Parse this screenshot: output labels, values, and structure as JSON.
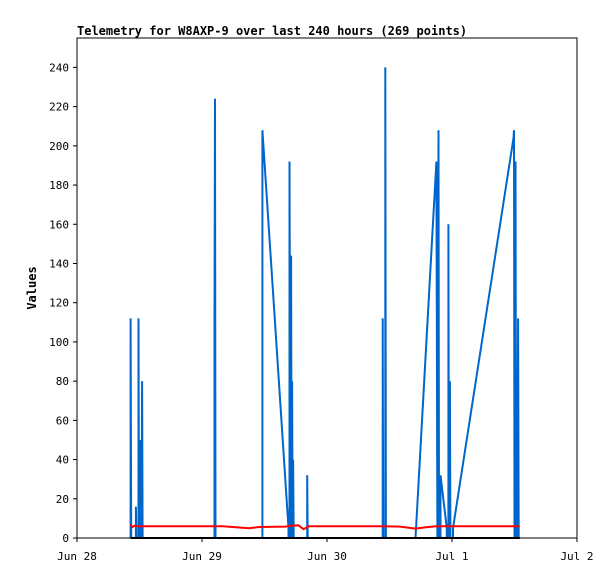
{
  "chart_data": {
    "type": "line",
    "title": "Telemetry for W8AXP-9 over last 240 hours (269 points)",
    "xlabel": "",
    "ylabel": "Values",
    "x_unit": "hours since Jun 28 00:00",
    "xlim": [
      0,
      96
    ],
    "ylim": [
      0,
      255
    ],
    "x_ticks": [
      {
        "value": 0,
        "label": "Jun 28"
      },
      {
        "value": 24,
        "label": "Jun 29"
      },
      {
        "value": 48,
        "label": "Jun 30"
      },
      {
        "value": 72,
        "label": "Jul 1"
      },
      {
        "value": 96,
        "label": "Jul 2"
      }
    ],
    "y_ticks": [
      0,
      20,
      40,
      60,
      80,
      100,
      120,
      140,
      160,
      180,
      200,
      220,
      240
    ],
    "grid": false,
    "series": [
      {
        "color": "#0066cc",
        "points": [
          [
            10.3,
            0
          ],
          [
            10.3,
            112
          ],
          [
            10.4,
            0
          ],
          [
            11.3,
            0
          ],
          [
            11.3,
            16
          ],
          [
            11.4,
            0
          ],
          [
            11.8,
            0
          ],
          [
            11.8,
            112
          ],
          [
            11.9,
            0
          ],
          [
            12.1,
            0
          ],
          [
            12.2,
            50
          ],
          [
            12.3,
            0
          ],
          [
            12.4,
            0
          ],
          [
            12.5,
            80
          ],
          [
            12.6,
            0
          ],
          [
            26.4,
            0
          ],
          [
            26.4,
            112
          ],
          [
            26.5,
            224
          ],
          [
            26.6,
            0
          ],
          [
            35.6,
            0
          ],
          [
            35.6,
            208
          ],
          [
            40.6,
            5
          ],
          [
            40.6,
            0
          ],
          [
            40.8,
            0
          ],
          [
            40.8,
            192
          ],
          [
            41.0,
            0
          ],
          [
            41.1,
            0
          ],
          [
            41.1,
            144
          ],
          [
            41.2,
            0
          ],
          [
            41.3,
            0
          ],
          [
            41.3,
            80
          ],
          [
            41.4,
            0
          ],
          [
            41.5,
            0
          ],
          [
            41.5,
            40
          ],
          [
            41.6,
            0
          ],
          [
            44.2,
            0
          ],
          [
            44.2,
            32
          ],
          [
            44.3,
            0
          ],
          [
            58.7,
            0
          ],
          [
            58.7,
            112
          ],
          [
            58.8,
            0
          ],
          [
            59.2,
            0
          ],
          [
            59.2,
            240
          ],
          [
            59.3,
            0
          ],
          [
            65.0,
            0
          ],
          [
            69.0,
            192
          ],
          [
            69.2,
            0
          ],
          [
            69.3,
            0
          ],
          [
            69.4,
            208
          ],
          [
            69.5,
            0
          ],
          [
            69.8,
            0
          ],
          [
            69.8,
            32
          ],
          [
            71.0,
            5
          ],
          [
            71.0,
            0
          ],
          [
            71.3,
            0
          ],
          [
            71.3,
            160
          ],
          [
            71.4,
            0
          ],
          [
            71.6,
            0
          ],
          [
            71.6,
            80
          ],
          [
            71.7,
            0
          ],
          [
            72.2,
            0
          ],
          [
            72.2,
            5
          ],
          [
            83.8,
            204
          ],
          [
            83.9,
            208
          ],
          [
            84.0,
            0
          ],
          [
            84.2,
            0
          ],
          [
            84.2,
            192
          ],
          [
            84.3,
            0
          ],
          [
            84.6,
            0
          ],
          [
            84.6,
            56
          ],
          [
            84.7,
            112
          ],
          [
            84.8,
            0
          ]
        ]
      },
      {
        "color": "#ff0000",
        "points": [
          [
            10.3,
            7
          ],
          [
            10.6,
            5.5
          ],
          [
            11.0,
            6.2
          ],
          [
            12.0,
            5.9
          ],
          [
            13.0,
            6.0
          ],
          [
            20.0,
            6.0
          ],
          [
            28.0,
            6.0
          ],
          [
            33.0,
            5.0
          ],
          [
            35.0,
            5.6
          ],
          [
            40.0,
            5.8
          ],
          [
            41.0,
            6.2
          ],
          [
            42.5,
            6.5
          ],
          [
            43.5,
            4.5
          ],
          [
            44.5,
            6.0
          ],
          [
            48.0,
            6.0
          ],
          [
            58.0,
            6.0
          ],
          [
            62.0,
            5.8
          ],
          [
            65.0,
            4.8
          ],
          [
            67.0,
            5.5
          ],
          [
            69.0,
            6.0
          ],
          [
            72.0,
            6.0
          ],
          [
            80.0,
            6.0
          ],
          [
            85.0,
            6.0
          ]
        ]
      },
      {
        "color": "#000000",
        "points": [
          [
            10.3,
            0
          ],
          [
            85.0,
            0
          ]
        ]
      }
    ]
  }
}
